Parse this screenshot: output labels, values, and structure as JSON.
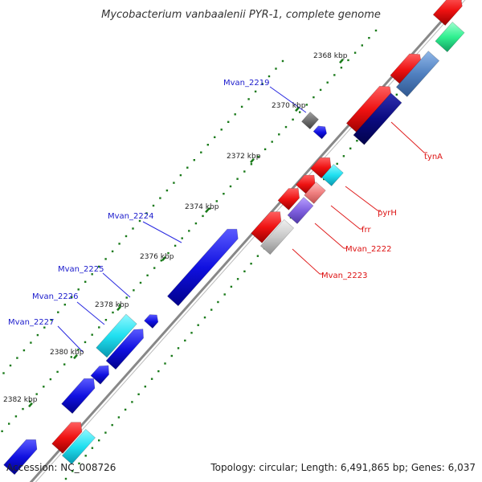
{
  "title": "Mycobacterium vanbaalenii PYR-1, complete genome",
  "footer": {
    "accession": "Accession: NC_008726",
    "summary": "Topology: circular; Length: 6,491,865 bp; Genes: 6,037"
  },
  "ticks": [
    "2368 kbp",
    "2370 kbp",
    "2372 kbp",
    "2374 kbp",
    "2376 kbp",
    "2378 kbp",
    "2380 kbp",
    "2382 kbp"
  ],
  "genes_left": [
    "Mvan_2219",
    "Mvan_2224",
    "Mvan_2225",
    "Mvan_2226",
    "Mvan_2227"
  ],
  "genes_right": [
    "tynA",
    "pyrH",
    "frr",
    "Mvan_2222",
    "Mvan_2223"
  ],
  "colors": {
    "forward_cds": "#1010e0",
    "reverse_cds": "#ee1111",
    "cyan_feature": "#20e0f0",
    "green_feature": "#30f090",
    "navy_feature": "#0a0a80",
    "steel_feature": "#5080c0",
    "pink_feature": "#f08080",
    "violet_feature": "#8060e0",
    "gray_feature": "#c8c8c8",
    "dark_gray_feature": "#707070",
    "backbone": "#888888",
    "tick_dots": "#1a7a1a",
    "left_label": "#1a1acc",
    "right_label": "#dd1111"
  }
}
